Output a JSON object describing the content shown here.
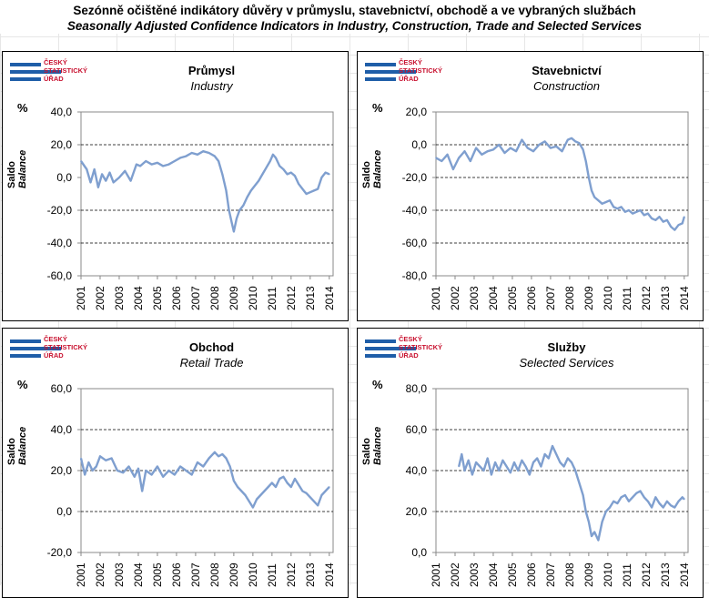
{
  "header": {
    "title_cz": "Sezónně očištěné indikátory důvěry v průmyslu, stavebnictví, obchodě a ve vybraných službách",
    "title_en": "Seasonally Adjusted Confidence Indicators in Industry, Construction, Trade and Selected Services"
  },
  "logo": {
    "line1": "ČESKÝ",
    "line2": "STATISTICKÝ",
    "line3": "ÚŘAD"
  },
  "colors": {
    "line": "#7f9fcf",
    "logo_blue": "#1f5ea8",
    "logo_red": "#c8102e"
  },
  "chart_data": [
    {
      "type": "line",
      "title": "Průmysl",
      "subtitle": "Industry",
      "unit_label": "%",
      "ylabel": "Saldo",
      "ylabel_en": "Balance",
      "ylim": [
        -60,
        40
      ],
      "yticks": [
        "40,0",
        "20,0",
        "0,0",
        "-20,0",
        "-40,0",
        "-60,0"
      ],
      "ytick_values": [
        40,
        20,
        0,
        -20,
        -40,
        -60
      ],
      "grid_values": [
        20,
        -20,
        -40
      ],
      "xlim": [
        2001,
        2014.2
      ],
      "xticks": [
        "2001",
        "2002",
        "2003",
        "2004",
        "2005",
        "2006",
        "2007",
        "2008",
        "2009",
        "2010",
        "2011",
        "2012",
        "2013",
        "2014"
      ],
      "x": [
        2001.0,
        2001.3,
        2001.5,
        2001.7,
        2001.9,
        2002.1,
        2002.3,
        2002.5,
        2002.7,
        2003.0,
        2003.3,
        2003.6,
        2003.9,
        2004.1,
        2004.4,
        2004.7,
        2005.0,
        2005.3,
        2005.6,
        2005.9,
        2006.2,
        2006.5,
        2006.8,
        2007.1,
        2007.4,
        2007.7,
        2008.0,
        2008.2,
        2008.4,
        2008.6,
        2008.75,
        2008.9,
        2009.0,
        2009.15,
        2009.3,
        2009.5,
        2009.7,
        2009.9,
        2010.1,
        2010.3,
        2010.5,
        2010.7,
        2010.9,
        2011.05,
        2011.2,
        2011.4,
        2011.6,
        2011.8,
        2012.0,
        2012.2,
        2012.4,
        2012.6,
        2012.8,
        2013.0,
        2013.2,
        2013.4,
        2013.6,
        2013.8,
        2014.0
      ],
      "values": [
        10,
        5,
        -3,
        5,
        -6,
        2,
        -2,
        3,
        -3,
        0,
        4,
        -2,
        8,
        7,
        10,
        8,
        9,
        7,
        8,
        10,
        12,
        13,
        15,
        14,
        16,
        15,
        13,
        10,
        2,
        -8,
        -20,
        -28,
        -33,
        -25,
        -20,
        -17,
        -12,
        -8,
        -5,
        -2,
        2,
        6,
        10,
        14,
        12,
        7,
        5,
        2,
        3,
        1,
        -4,
        -7,
        -10,
        -9,
        -8,
        -7,
        0,
        3,
        2
      ]
    },
    {
      "type": "line",
      "title": "Stavebnictví",
      "subtitle": "Construction",
      "unit_label": "%",
      "ylabel": "Saldo",
      "ylabel_en": "Balance",
      "ylim": [
        -80,
        20
      ],
      "yticks": [
        "20,0",
        "0,0",
        "-20,0",
        "-40,0",
        "-60,0",
        "-80,0"
      ],
      "ytick_values": [
        20,
        0,
        -20,
        -40,
        -60,
        -80
      ],
      "grid_values": [
        0,
        -20,
        -40,
        -60
      ],
      "xlim": [
        2001,
        2014.2
      ],
      "xticks": [
        "2001",
        "2002",
        "2003",
        "2004",
        "2005",
        "2006",
        "2007",
        "2008",
        "2009",
        "2010",
        "2011",
        "2012",
        "2013",
        "2014"
      ],
      "x": [
        2001.0,
        2001.3,
        2001.6,
        2001.9,
        2002.2,
        2002.5,
        2002.8,
        2003.1,
        2003.4,
        2003.7,
        2004.0,
        2004.3,
        2004.6,
        2004.9,
        2005.2,
        2005.5,
        2005.8,
        2006.1,
        2006.4,
        2006.7,
        2007.0,
        2007.3,
        2007.6,
        2007.9,
        2008.1,
        2008.3,
        2008.5,
        2008.7,
        2008.85,
        2009.0,
        2009.15,
        2009.3,
        2009.5,
        2009.7,
        2009.9,
        2010.1,
        2010.3,
        2010.5,
        2010.7,
        2010.9,
        2011.1,
        2011.3,
        2011.5,
        2011.7,
        2011.9,
        2012.1,
        2012.3,
        2012.5,
        2012.7,
        2012.9,
        2013.1,
        2013.3,
        2013.5,
        2013.7,
        2013.9,
        2014.0
      ],
      "values": [
        -8,
        -10,
        -6,
        -15,
        -8,
        -4,
        -10,
        -2,
        -6,
        -4,
        -3,
        0,
        -5,
        -2,
        -4,
        3,
        -2,
        -4,
        0,
        2,
        -2,
        -1,
        -4,
        3,
        4,
        2,
        1,
        -3,
        -10,
        -20,
        -28,
        -32,
        -34,
        -36,
        -35,
        -34,
        -38,
        -39,
        -38,
        -41,
        -40,
        -42,
        -41,
        -40,
        -43,
        -42,
        -45,
        -46,
        -44,
        -47,
        -46,
        -50,
        -52,
        -49,
        -48,
        -44
      ]
    },
    {
      "type": "line",
      "title": "Obchod",
      "subtitle": "Retail Trade",
      "unit_label": "%",
      "ylabel": "Saldo",
      "ylabel_en": "Balance",
      "ylim": [
        -20,
        60
      ],
      "yticks": [
        "60,0",
        "40,0",
        "20,0",
        "0,0",
        "-20,0"
      ],
      "ytick_values": [
        60,
        40,
        20,
        0,
        -20
      ],
      "grid_values": [
        40,
        20,
        0
      ],
      "xlim": [
        2001,
        2014.2
      ],
      "xticks": [
        "2001",
        "2002",
        "2003",
        "2004",
        "2005",
        "2006",
        "2007",
        "2008",
        "2009",
        "2010",
        "2011",
        "2012",
        "2013",
        "2014"
      ],
      "x": [
        2001.0,
        2001.2,
        2001.4,
        2001.6,
        2001.8,
        2002.0,
        2002.3,
        2002.6,
        2002.9,
        2003.2,
        2003.5,
        2003.8,
        2004.0,
        2004.2,
        2004.4,
        2004.7,
        2005.0,
        2005.3,
        2005.6,
        2005.9,
        2006.2,
        2006.5,
        2006.8,
        2007.1,
        2007.4,
        2007.7,
        2008.0,
        2008.2,
        2008.4,
        2008.6,
        2008.8,
        2009.0,
        2009.2,
        2009.4,
        2009.6,
        2009.8,
        2010.0,
        2010.2,
        2010.4,
        2010.6,
        2010.8,
        2011.0,
        2011.2,
        2011.4,
        2011.6,
        2011.8,
        2012.0,
        2012.2,
        2012.4,
        2012.6,
        2012.8,
        2013.0,
        2013.2,
        2013.4,
        2013.6,
        2013.8,
        2014.0
      ],
      "values": [
        26,
        18,
        24,
        20,
        22,
        27,
        25,
        26,
        20,
        19,
        22,
        17,
        21,
        10,
        20,
        18,
        22,
        17,
        20,
        18,
        22,
        20,
        18,
        24,
        22,
        26,
        29,
        27,
        28,
        26,
        22,
        15,
        12,
        10,
        8,
        5,
        2,
        6,
        8,
        10,
        12,
        14,
        12,
        16,
        17,
        14,
        12,
        16,
        13,
        10,
        9,
        7,
        5,
        3,
        8,
        10,
        12
      ]
    },
    {
      "type": "line",
      "title": "Služby",
      "subtitle": "Selected Services",
      "unit_label": "%",
      "ylabel": "Saldo",
      "ylabel_en": "Balance",
      "ylim": [
        0,
        80
      ],
      "yticks": [
        "80,0",
        "60,0",
        "40,0",
        "20,0",
        "0,0"
      ],
      "ytick_values": [
        80,
        60,
        40,
        20,
        0
      ],
      "grid_values": [
        60,
        40,
        20
      ],
      "xlim": [
        2001,
        2014.2
      ],
      "xticks": [
        "2001",
        "2002",
        "2003",
        "2004",
        "2005",
        "2006",
        "2007",
        "2008",
        "2009",
        "2010",
        "2011",
        "2012",
        "2013",
        "2014"
      ],
      "x": [
        2002.2,
        2002.35,
        2002.5,
        2002.7,
        2002.9,
        2003.1,
        2003.3,
        2003.5,
        2003.7,
        2003.9,
        2004.1,
        2004.3,
        2004.5,
        2004.7,
        2004.9,
        2005.1,
        2005.3,
        2005.5,
        2005.7,
        2005.9,
        2006.1,
        2006.3,
        2006.5,
        2006.7,
        2006.9,
        2007.1,
        2007.3,
        2007.5,
        2007.7,
        2007.9,
        2008.1,
        2008.3,
        2008.5,
        2008.7,
        2008.85,
        2009.0,
        2009.15,
        2009.3,
        2009.5,
        2009.7,
        2009.9,
        2010.1,
        2010.3,
        2010.5,
        2010.7,
        2010.9,
        2011.1,
        2011.3,
        2011.5,
        2011.7,
        2011.9,
        2012.1,
        2012.3,
        2012.5,
        2012.7,
        2012.9,
        2013.1,
        2013.3,
        2013.5,
        2013.7,
        2013.9,
        2014.0
      ],
      "values": [
        42,
        48,
        40,
        45,
        38,
        44,
        42,
        40,
        46,
        38,
        44,
        40,
        45,
        42,
        39,
        44,
        40,
        45,
        42,
        38,
        44,
        46,
        42,
        48,
        46,
        52,
        48,
        44,
        42,
        46,
        44,
        40,
        34,
        28,
        20,
        15,
        8,
        10,
        6,
        15,
        20,
        22,
        25,
        24,
        27,
        28,
        25,
        27,
        29,
        30,
        27,
        25,
        22,
        27,
        24,
        22,
        25,
        23,
        22,
        25,
        27,
        26
      ]
    }
  ]
}
